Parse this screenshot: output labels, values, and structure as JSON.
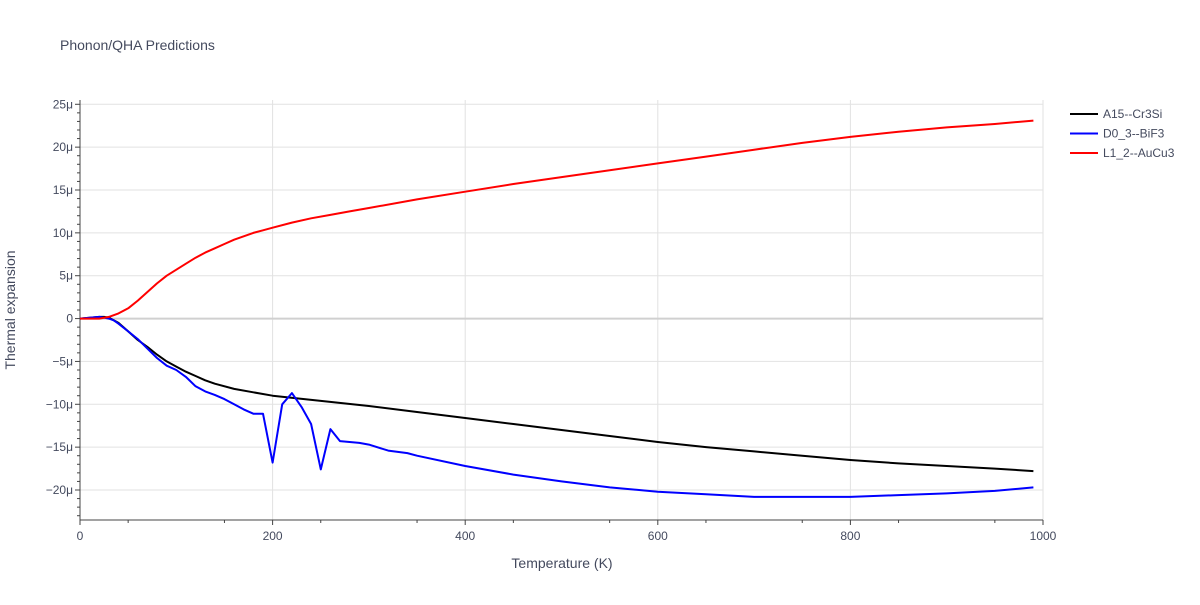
{
  "chart_data": {
    "type": "line",
    "title": "Phonon/QHA Predictions",
    "xlabel": "Temperature (K)",
    "ylabel": "Thermal expansion",
    "xlim": [
      0,
      1000
    ],
    "ylim": [
      -23.5,
      25.5
    ],
    "x_ticks": [
      0,
      200,
      400,
      600,
      800,
      1000
    ],
    "x_tick_labels": [
      "0",
      "200",
      "400",
      "600",
      "800",
      "1000"
    ],
    "y_ticks": [
      25,
      20,
      15,
      10,
      5,
      0,
      -5,
      -10,
      -15,
      -20
    ],
    "y_tick_labels": [
      "25μ",
      "20μ",
      "15μ",
      "10μ",
      "5μ",
      "0",
      "−5μ",
      "−10μ",
      "−15μ",
      "−20μ"
    ],
    "grid": true,
    "legend_position": "top-right",
    "series": [
      {
        "name": "A15--Cr3Si",
        "color": "#000000",
        "x": [
          0,
          10,
          20,
          25,
          30,
          35,
          40,
          50,
          60,
          70,
          80,
          90,
          100,
          110,
          120,
          130,
          140,
          160,
          180,
          200,
          250,
          300,
          350,
          400,
          450,
          500,
          550,
          600,
          650,
          700,
          750,
          800,
          850,
          900,
          950,
          990
        ],
        "y": [
          0,
          0.1,
          0.2,
          0.2,
          0.1,
          -0.2,
          -0.5,
          -1.5,
          -2.5,
          -3.3,
          -4.2,
          -5,
          -5.6,
          -6.2,
          -6.7,
          -7.2,
          -7.6,
          -8.2,
          -8.6,
          -9,
          -9.6,
          -10.2,
          -10.9,
          -11.6,
          -12.3,
          -13,
          -13.7,
          -14.4,
          -15,
          -15.5,
          -16,
          -16.5,
          -16.9,
          -17.2,
          -17.5,
          -17.8
        ]
      },
      {
        "name": "D0_3--BiF3",
        "color": "#0000ff",
        "x": [
          0,
          10,
          20,
          25,
          30,
          35,
          40,
          50,
          60,
          70,
          80,
          90,
          100,
          110,
          120,
          130,
          140,
          150,
          160,
          170,
          180,
          190,
          200,
          210,
          220,
          230,
          240,
          250,
          260,
          270,
          280,
          290,
          300,
          320,
          340,
          350,
          400,
          450,
          500,
          550,
          600,
          650,
          700,
          750,
          800,
          850,
          900,
          950,
          990
        ],
        "y": [
          0,
          0.1,
          0.2,
          0.1,
          0,
          -0.2,
          -0.6,
          -1.5,
          -2.4,
          -3.5,
          -4.6,
          -5.5,
          -6,
          -6.8,
          -7.9,
          -8.5,
          -8.9,
          -9.4,
          -10,
          -10.6,
          -11.1,
          -11.1,
          -16.8,
          -10,
          -8.7,
          -10.3,
          -12.3,
          -17.6,
          -12.9,
          -14.3,
          -14.4,
          -14.5,
          -14.7,
          -15.4,
          -15.7,
          -16,
          -17.2,
          -18.2,
          -19,
          -19.7,
          -20.2,
          -20.5,
          -20.8,
          -20.8,
          -20.8,
          -20.6,
          -20.4,
          -20.1,
          -19.7
        ]
      },
      {
        "name": "L1_2--AuCu3",
        "color": "#ff0000",
        "x": [
          0,
          10,
          20,
          30,
          40,
          50,
          60,
          70,
          80,
          90,
          100,
          110,
          120,
          130,
          140,
          150,
          160,
          170,
          180,
          190,
          200,
          220,
          240,
          260,
          280,
          300,
          350,
          400,
          450,
          500,
          550,
          600,
          650,
          700,
          750,
          800,
          850,
          900,
          950,
          990
        ],
        "y": [
          0,
          0,
          0,
          0.2,
          0.6,
          1.2,
          2.1,
          3.1,
          4.1,
          5,
          5.7,
          6.4,
          7.1,
          7.7,
          8.2,
          8.7,
          9.2,
          9.6,
          10,
          10.3,
          10.6,
          11.2,
          11.7,
          12.1,
          12.5,
          12.9,
          13.9,
          14.8,
          15.7,
          16.5,
          17.3,
          18.1,
          18.9,
          19.7,
          20.5,
          21.2,
          21.8,
          22.3,
          22.7,
          23.1
        ]
      }
    ]
  }
}
